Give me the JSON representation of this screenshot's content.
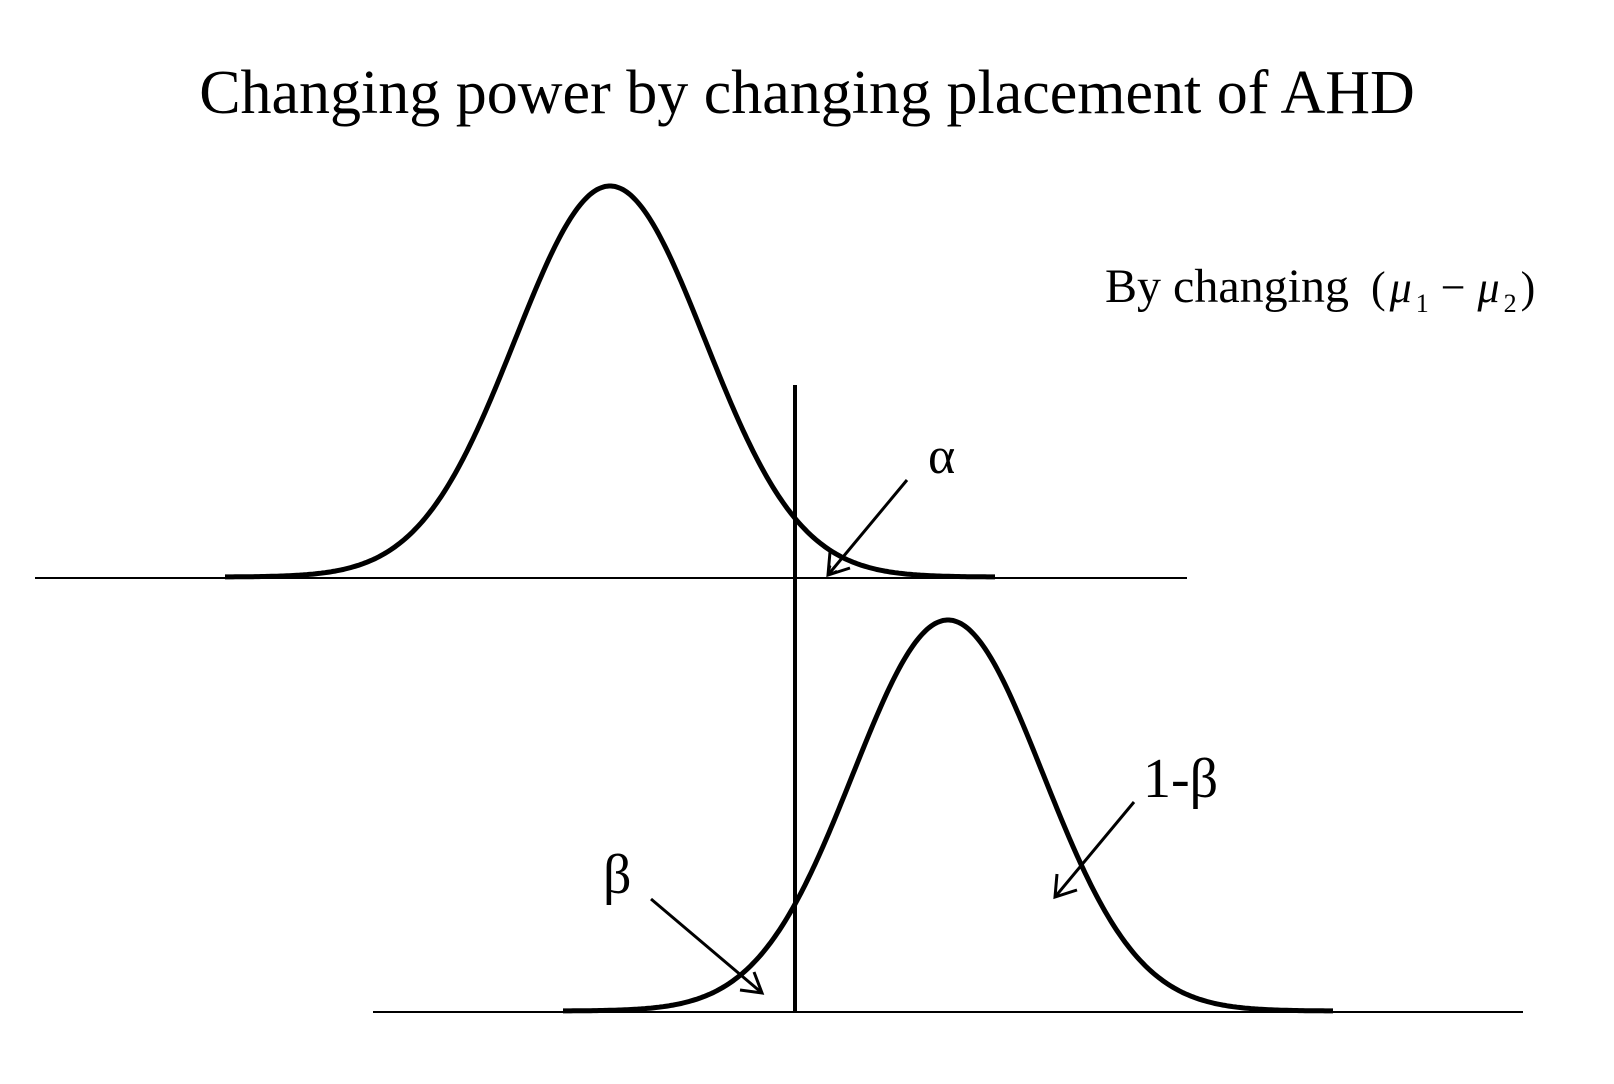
{
  "title": "Changing power by changing placement of AHD",
  "side_note": {
    "prefix": "By changing",
    "open": "(",
    "mu": "μ",
    "sub1": "1",
    "minus": "−",
    "sub2": "2",
    "close": ")"
  },
  "labels": {
    "alpha": "α",
    "beta": "β",
    "power": "1-β"
  }
}
